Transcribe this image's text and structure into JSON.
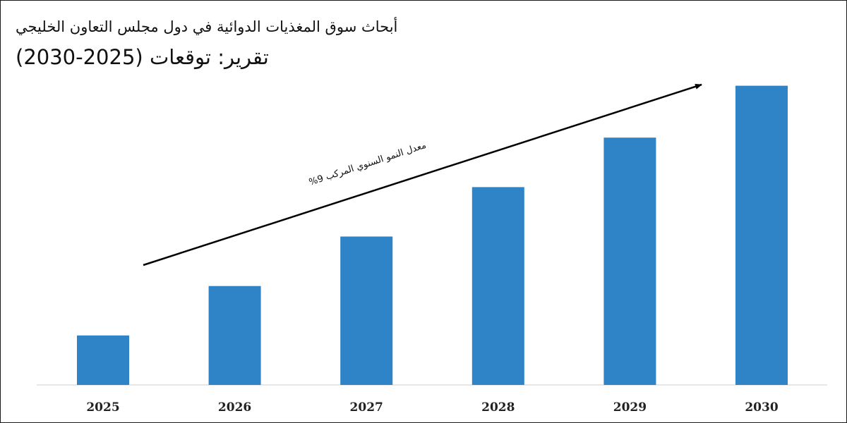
{
  "chart_data": {
    "type": "bar",
    "title": "أبحاث سوق المغذيات الدوائية في دول مجلس التعاون الخليجي",
    "subtitle": "تقرير: توقعات (2025-2030)",
    "categories": [
      "2025",
      "2026",
      "2027",
      "2028",
      "2029",
      "2030"
    ],
    "values": [
      1.0,
      2.0,
      3.0,
      4.0,
      5.0,
      6.05
    ],
    "ylim": [
      0,
      6.6
    ],
    "xlabel": "",
    "ylabel": "",
    "grid": false,
    "bar_color": "#2e84c6",
    "annotation": {
      "text": "معدل النمو السنوي المركب 9%",
      "type": "trend-arrow"
    }
  }
}
